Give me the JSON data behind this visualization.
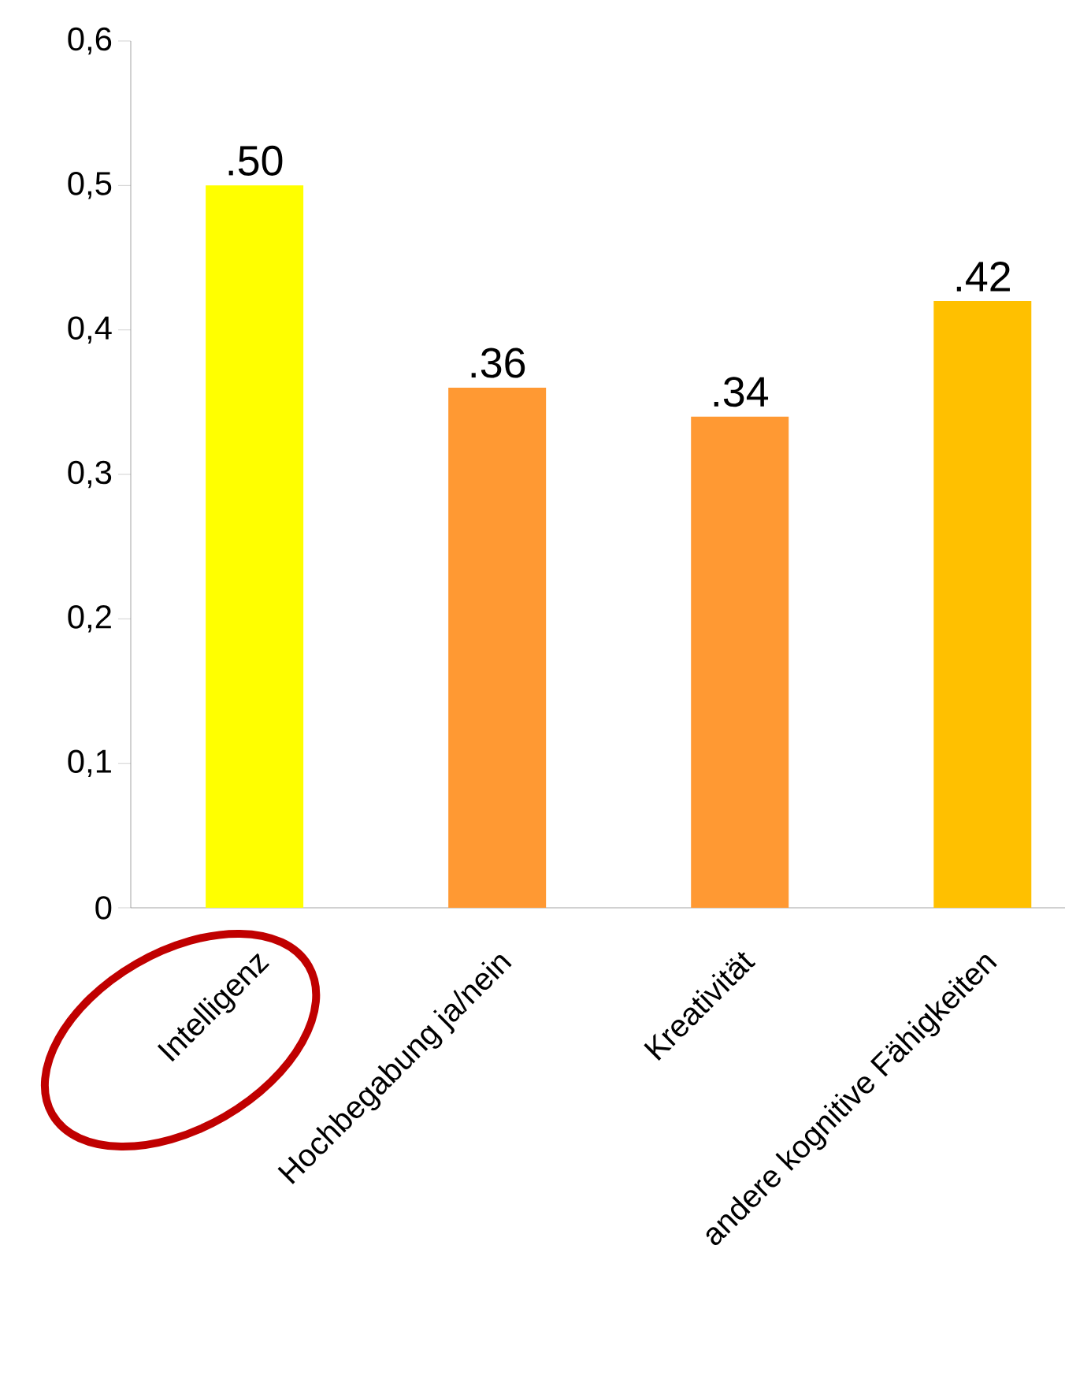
{
  "chart_data": {
    "type": "bar",
    "categories": [
      "Intelligenz",
      "Hochbegabung ja/nein",
      "Kreativität",
      "andere kognitive Fähigkeiten"
    ],
    "values": [
      0.5,
      0.36,
      0.34,
      0.42
    ],
    "value_labels": [
      ".50",
      ".36",
      ".34",
      ".42"
    ],
    "colors": [
      "#ffff00",
      "#ff9933",
      "#ff9933",
      "#ffc000"
    ],
    "ylim": [
      0,
      0.6
    ],
    "yticks": [
      0,
      {
        "value": 0.1,
        "label": "0,1"
      },
      {
        "value": 0.2,
        "label": "0,2"
      },
      {
        "value": 0.3,
        "label": "0,3"
      },
      {
        "value": 0.4,
        "label": "0,4"
      },
      {
        "value": 0.5,
        "label": "0,5"
      },
      {
        "value": 0.6,
        "label": "0,6"
      }
    ],
    "grid": false
  }
}
